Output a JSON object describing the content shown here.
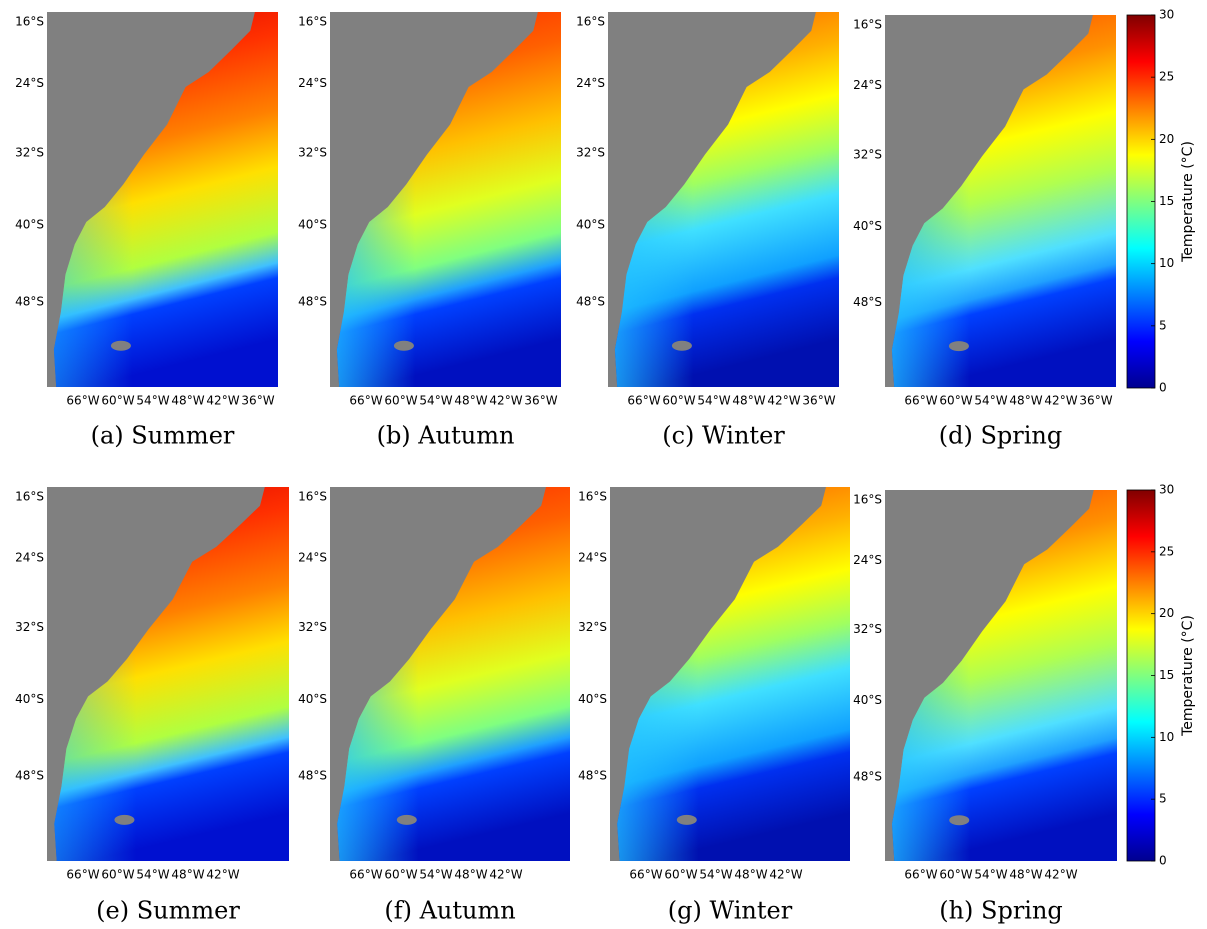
{
  "panels": [
    {
      "caption": "(a) Summer",
      "lat_labels": [
        "16°S",
        "24°S",
        "32°S",
        "40°S",
        "48°S"
      ],
      "lon_labels": [
        "66°W",
        "60°W",
        "54°W",
        "48°W",
        "42°W",
        "36°W"
      ]
    },
    {
      "caption": "(b) Autumn",
      "lat_labels": [
        "16°S",
        "24°S",
        "32°S",
        "40°S",
        "48°S"
      ],
      "lon_labels": [
        "66°W",
        "60°W",
        "54°W",
        "48°W",
        "42°W",
        "36°W"
      ]
    },
    {
      "caption": "(c) Winter",
      "lat_labels": [
        "16°S",
        "24°S",
        "32°S",
        "40°S",
        "48°S"
      ],
      "lon_labels": [
        "66°W",
        "60°W",
        "54°W",
        "48°W",
        "42°W",
        "36°W"
      ]
    },
    {
      "caption": "(d) Spring",
      "lat_labels": [
        "16°S",
        "24°S",
        "32°S",
        "40°S",
        "48°S"
      ],
      "lon_labels": [
        "66°W",
        "60°W",
        "54°W",
        "48°W",
        "42°W",
        "36°W"
      ]
    },
    {
      "caption": "(e) Summer",
      "lat_labels": [
        "16°S",
        "24°S",
        "32°S",
        "40°S",
        "48°S"
      ],
      "lon_labels": [
        "66°W",
        "60°W",
        "54°W",
        "48°W",
        "42°W"
      ]
    },
    {
      "caption": "(f) Autumn",
      "lat_labels": [
        "16°S",
        "24°S",
        "32°S",
        "40°S",
        "48°S"
      ],
      "lon_labels": [
        "66°W",
        "60°W",
        "54°W",
        "48°W",
        "42°W"
      ]
    },
    {
      "caption": "(g) Winter",
      "lat_labels": [
        "16°S",
        "24°S",
        "32°S",
        "40°S",
        "48°S"
      ],
      "lon_labels": [
        "66°W",
        "60°W",
        "54°W",
        "48°W",
        "42°W"
      ]
    },
    {
      "caption": "(h) Spring",
      "lat_labels": [
        "16°S",
        "24°S",
        "32°S",
        "40°S",
        "48°S"
      ],
      "lon_labels": [
        "66°W",
        "60°W",
        "54°W",
        "48°W",
        "42°W"
      ]
    }
  ],
  "colorbars": [
    {
      "label": "Temperature (°C)",
      "lim": [
        0,
        30
      ],
      "ticks": [
        0,
        5,
        10,
        15,
        20,
        25,
        30
      ]
    },
    {
      "label": "Temperature (°C)",
      "lim": [
        0,
        30
      ],
      "ticks": [
        0,
        5,
        10,
        15,
        20,
        25,
        30
      ]
    }
  ]
}
